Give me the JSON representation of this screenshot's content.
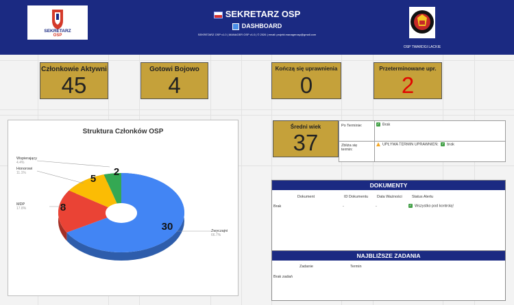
{
  "header": {
    "title": "SEKRETARZ OSP",
    "subtitle": "DASHBOARD",
    "credit": "SEKRETARZ OSP v1.0 | MANAGER OSP v1.0 | © 2026 | email: projekt.managerosp@gmail.com",
    "logo_left_text": "SEKRETARZ",
    "logo_left_sub": "OSP",
    "right_unit_name": "OSP TWARDGI LACKIE",
    "icons": [
      "flag-icon",
      "dashboard-icon"
    ]
  },
  "kpis": [
    {
      "label": "Członkowie Aktywni",
      "value": "45",
      "color": "#222222"
    },
    {
      "label": "Gotowi Bojowo",
      "value": "4",
      "color": "#222222"
    },
    {
      "label": "Kończą się uprawnienia",
      "value": "0",
      "color": "#222222"
    },
    {
      "label": "Przeterminowane upr.",
      "value": "2",
      "color": "#e10600"
    }
  ],
  "average_age": {
    "label": "Średni wiek",
    "value": "37"
  },
  "status_table": {
    "after_term_label": "Po Terminie:",
    "after_term_value": "Brak",
    "approaching_label_1": "Zbliża się",
    "approaching_label_2": "termin:",
    "approaching_value_warn": "UPŁYWA TERMIN UPRAWNIEŃ:",
    "approaching_value_ok": "brak"
  },
  "chart_data": {
    "type": "pie",
    "title": "Struktura Członków OSP",
    "slices": [
      {
        "name": "Zwyczajni",
        "value": 30,
        "percent": "66.7%",
        "color": "#4285f4"
      },
      {
        "name": "MDP",
        "value": 8,
        "percent": "17.8%",
        "color": "#ea4335"
      },
      {
        "name": "Honorowi",
        "value": 5,
        "percent": "11.1%",
        "color": "#fbbc04"
      },
      {
        "name": "Wspierający",
        "value": 2,
        "percent": "4.4%",
        "color": "#34a853"
      }
    ],
    "style": "3d-donut"
  },
  "documents": {
    "title": "DOKUMENTY",
    "columns": [
      "Dokument",
      "ID Dokumentu",
      "Data Ważności",
      "Status Alertu"
    ],
    "rows": [
      {
        "name": "Brak",
        "id": "-",
        "date": "-",
        "status": "Wszystko pod kontrolą!"
      }
    ]
  },
  "tasks": {
    "title": "NAJBLIŻSZE ZADANIA",
    "columns": [
      "Zadanie",
      "Termin"
    ],
    "empty_text": "Brak zadań"
  }
}
